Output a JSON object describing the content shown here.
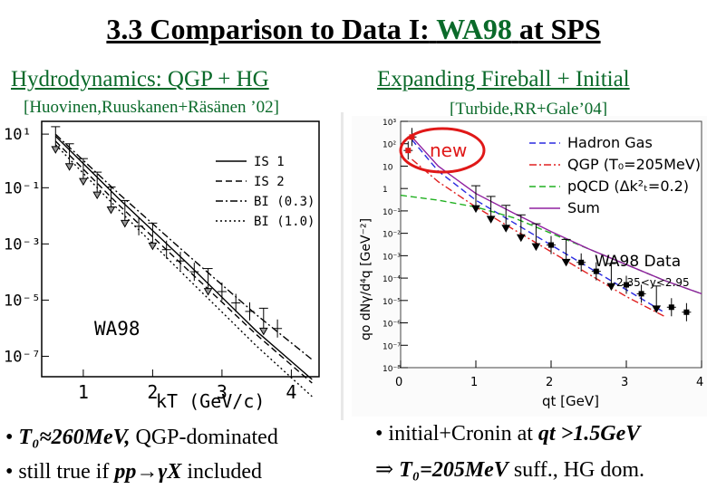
{
  "slide": {
    "title_prefix": "3.3 Comparison to Data I:",
    "title_highlight": "WA98",
    "title_suffix": "at SPS"
  },
  "left": {
    "heading": "Hydrodynamics: QGP + HG",
    "reference": "[Huovinen,Ruuskanen+Räsänen ’02]",
    "bullets": [
      {
        "symbol": "•",
        "math": "T₀≈260MeV,",
        "text": "QGP-dominated"
      },
      {
        "symbol": "•",
        "text": "still true if",
        "math": "pp→γX",
        "tail": "included"
      }
    ]
  },
  "right": {
    "heading": "Expanding Fireball + Initial",
    "reference": "[Turbide,RR+Gale’04]",
    "bullets": [
      {
        "symbol": "•",
        "text": "initial+Cronin at",
        "math": "qt >1.5GeV"
      },
      {
        "symbol": "⇒",
        "math": "T₀=205MeV",
        "text": "suff., HG dom."
      }
    ]
  },
  "chart_data": [
    {
      "type": "line",
      "panel": "left",
      "ylabel": "",
      "xlabel": "kT (GeV/c)",
      "y_scale": "log",
      "ylim": [
        1e-08,
        10
      ],
      "xlim": [
        0.4,
        4.4
      ],
      "x_ticks": [
        "1",
        "2",
        "3",
        "4"
      ],
      "y_ticks": [
        "10¹",
        "10⁻¹",
        "10⁻³",
        "10⁻⁵",
        "10⁻⁷"
      ],
      "annotation": "WA98",
      "legend_position": "top-right",
      "series": [
        {
          "name": "IS 1",
          "style": "solid",
          "x": [
            0.6,
            1.5,
            2.5,
            3.5,
            4.3
          ],
          "y": [
            3.0,
            0.02,
            0.0001,
            4e-07,
            8e-09
          ]
        },
        {
          "name": "IS 2",
          "style": "dashed",
          "x": [
            0.6,
            1.5,
            2.5,
            3.5,
            4.3
          ],
          "y": [
            2.0,
            0.012,
            6e-05,
            3e-07,
            6e-09
          ]
        },
        {
          "name": "BI (0.3)",
          "style": "dash-dot",
          "x": [
            0.6,
            1.5,
            2.5,
            3.5,
            4.3
          ],
          "y": [
            3.5,
            0.03,
            0.0002,
            1.5e-06,
            4e-08
          ]
        },
        {
          "name": "BI (1.0)",
          "style": "dotted",
          "x": [
            0.6,
            1.5,
            2.5,
            3.5,
            4.3
          ],
          "y": [
            1.5,
            0.008,
            3e-05,
            1.2e-07,
            2e-09
          ]
        }
      ],
      "data_points": {
        "name": "WA98",
        "x": [
          0.6,
          0.8,
          1.0,
          1.2,
          1.4,
          1.6,
          1.8,
          2.0,
          2.2,
          2.4,
          2.6,
          2.8,
          3.0,
          3.2,
          3.4,
          3.6,
          3.8
        ],
        "y": [
          2.0,
          0.5,
          0.15,
          0.05,
          0.015,
          0.005,
          0.002,
          0.0008,
          0.0003,
          0.00012,
          5e-05,
          2e-05,
          1e-05,
          4e-06,
          2e-06,
          8e-07,
          5e-07
        ],
        "upper_limits": [
          true,
          true,
          true,
          true,
          true,
          true,
          false,
          true,
          false,
          false,
          false,
          true,
          false,
          false,
          false,
          true,
          false
        ]
      }
    },
    {
      "type": "line",
      "panel": "right",
      "xlabel": "qt [GeV]",
      "ylabel": "qo dNγ/d⁴q [GeV⁻²]",
      "y_scale": "log",
      "ylim": [
        1e-08,
        1000.0
      ],
      "xlim": [
        0,
        4
      ],
      "x_ticks": [
        "0",
        "1",
        "2",
        "3",
        "4"
      ],
      "y_ticks": [
        "10³",
        "10²",
        "10",
        "1",
        "10⁻¹",
        "10⁻²",
        "10⁻³",
        "10⁻⁴",
        "10⁻⁵",
        "10⁻⁶",
        "10⁻⁷",
        "10⁻⁸"
      ],
      "annotation": "WA98 Data",
      "annotation_range": "2.35<y<2.95",
      "callout": "new",
      "legend_position": "top-right",
      "series": [
        {
          "name": "Hadron Gas",
          "color": "#2a2ae0",
          "style": "dashed",
          "x": [
            0.15,
            0.5,
            1,
            1.5,
            2,
            2.5,
            3,
            3.5
          ],
          "y": [
            150,
            6,
            0.3,
            0.03,
            0.003,
            0.0003,
            3e-05,
            3e-06
          ]
        },
        {
          "name": "QGP (T₀=205MeV)",
          "color": "#e02020",
          "style": "dash-dot",
          "x": [
            0.15,
            0.5,
            1,
            1.5,
            2,
            2.5,
            3,
            3.5
          ],
          "y": [
            20,
            2,
            0.15,
            0.015,
            0.0015,
            0.00015,
            1.5e-05,
            2e-06
          ]
        },
        {
          "name": "pQCD (Δk²ₜ=0.2)",
          "color": "#20b020",
          "style": "dashed",
          "x": [
            0,
            0.5,
            1,
            1.5,
            2,
            2.5,
            3,
            3.5,
            4
          ],
          "y": [
            0.5,
            0.3,
            0.15,
            0.05,
            0.01,
            0.002,
            0.0004,
            8e-05,
            2e-05
          ]
        },
        {
          "name": "Sum",
          "color": "#9020a0",
          "style": "solid",
          "x": [
            0.15,
            0.5,
            1,
            1.5,
            2,
            2.5,
            3,
            3.5,
            4
          ],
          "y": [
            200,
            10,
            0.6,
            0.08,
            0.012,
            0.002,
            0.0004,
            8e-05,
            2e-05
          ]
        }
      ],
      "data_points": {
        "name": "WA98",
        "x": [
          0.1,
          0.15,
          1.0,
          1.2,
          1.4,
          1.6,
          1.8,
          2.0,
          2.2,
          2.4,
          2.6,
          2.8,
          3.0,
          3.2,
          3.4,
          3.6,
          3.8
        ],
        "y": [
          50,
          200,
          0.3,
          0.1,
          0.04,
          0.015,
          0.006,
          0.003,
          0.0012,
          0.0005,
          0.0002,
          0.0001,
          5e-05,
          2e-05,
          1e-05,
          5e-06,
          3e-06
        ],
        "upper_limits": [
          false,
          false,
          true,
          true,
          true,
          true,
          true,
          false,
          true,
          false,
          false,
          true,
          false,
          false,
          true,
          false,
          false
        ]
      }
    }
  ]
}
